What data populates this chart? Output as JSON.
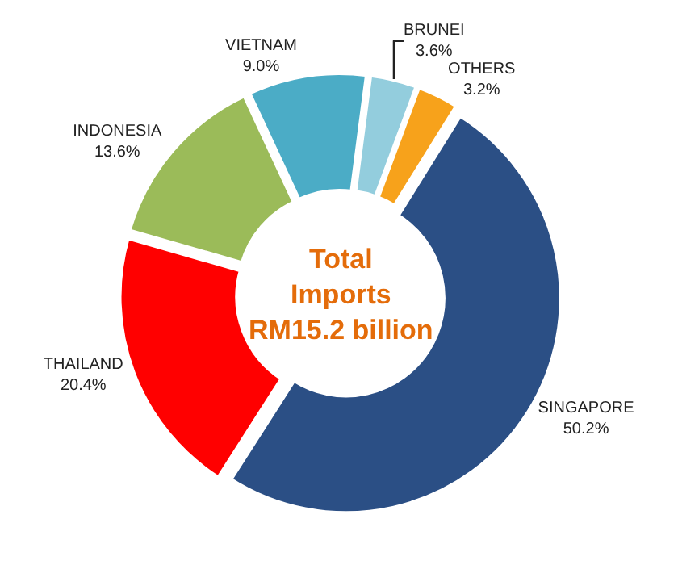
{
  "chart_data": {
    "type": "donut",
    "title": "Total\nImports\nRM15.2 billion",
    "categories": [
      "VIETNAM",
      "BRUNEI",
      "OTHERS",
      "SINGAPORE",
      "THAILAND",
      "INDONESIA"
    ],
    "values": [
      9.0,
      3.6,
      3.2,
      50.2,
      20.4,
      13.6
    ],
    "value_labels": [
      "9.0%",
      "3.6%",
      "3.2%",
      "50.2%",
      "20.4%",
      "13.6%"
    ],
    "colors": [
      "#4bacc6",
      "#93cddd",
      "#f7a21b",
      "#2b4f85",
      "#ff0000",
      "#9bbb59"
    ],
    "legend": false
  }
}
